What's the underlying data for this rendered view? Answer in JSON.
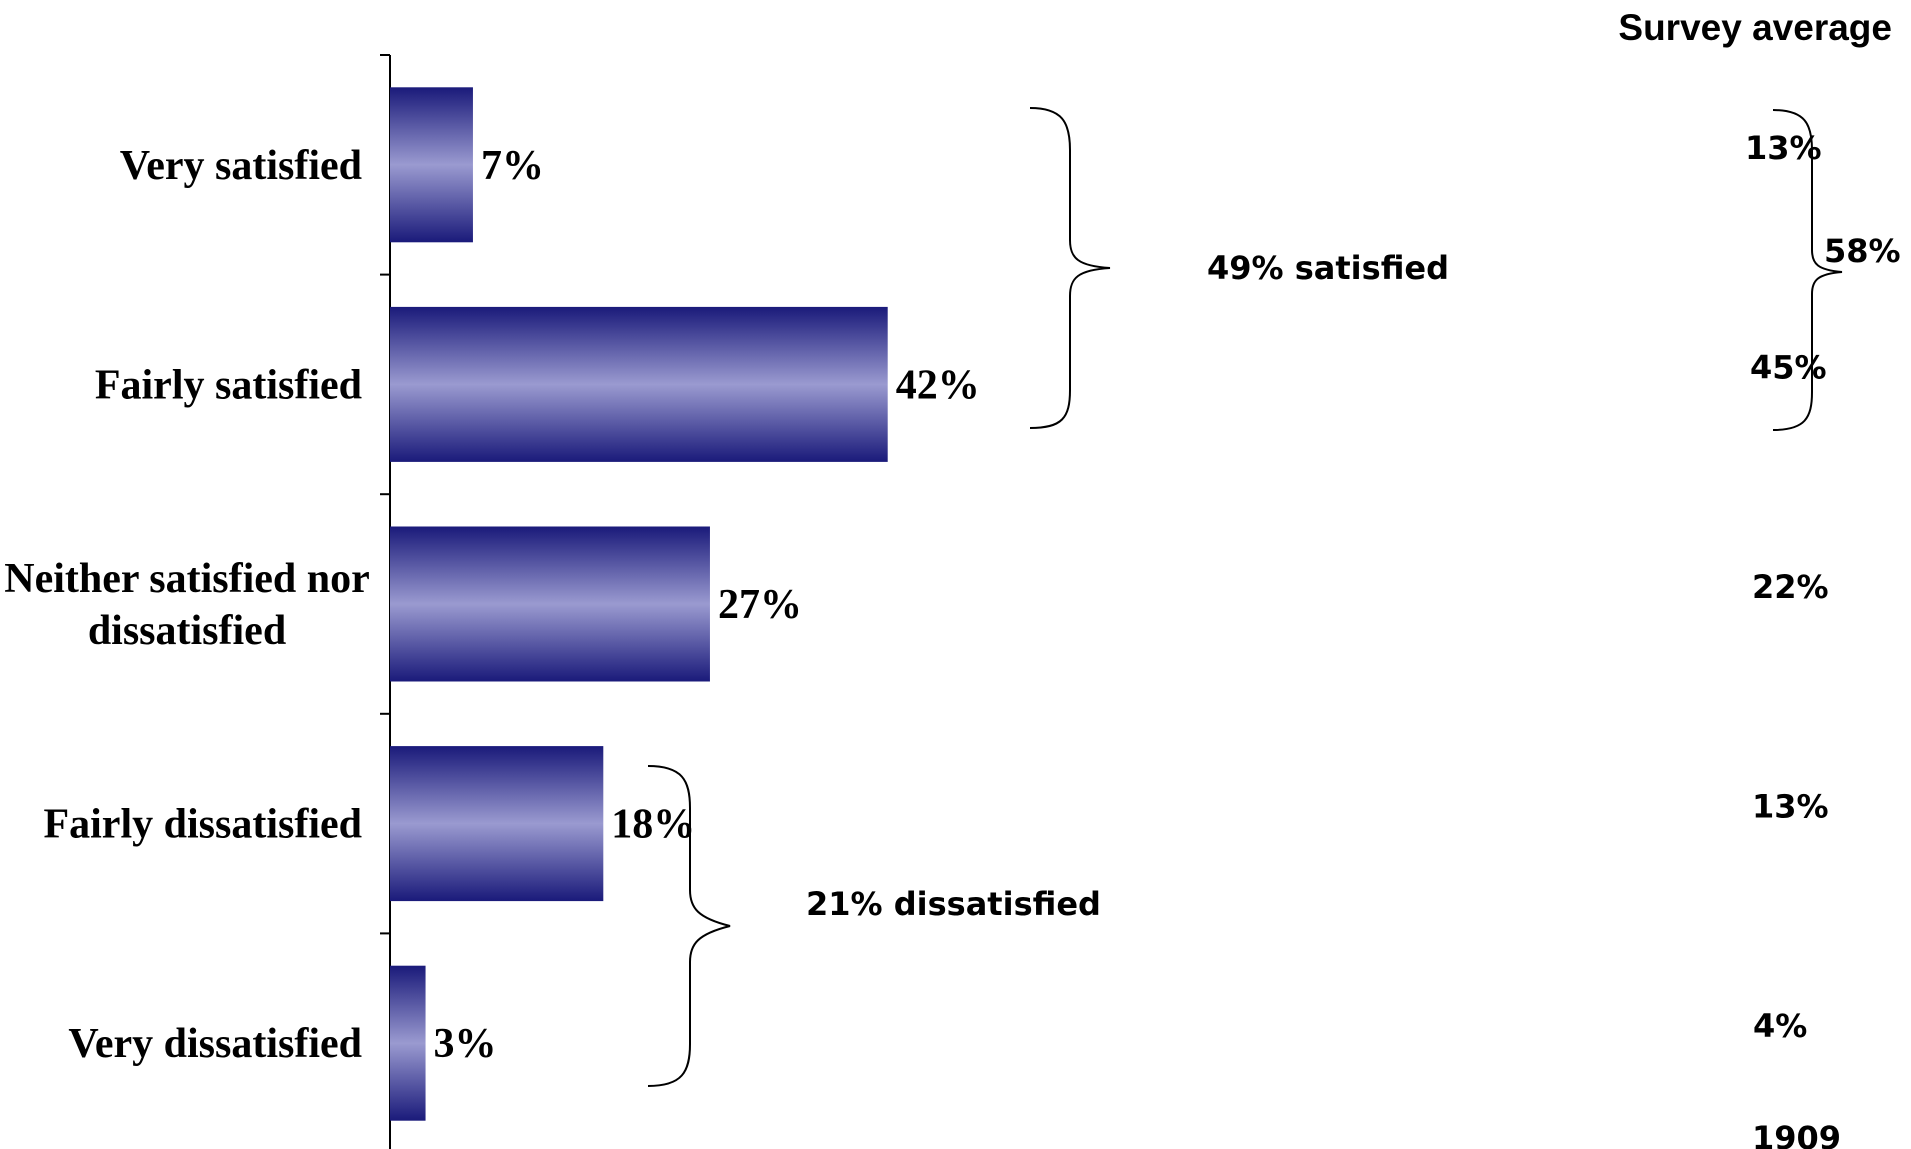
{
  "chart_data": {
    "type": "bar",
    "orientation": "horizontal",
    "categories": [
      "Very satisfied",
      "Fairly satisfied",
      "Neither satisfied nor dissatisfied",
      "Fairly dissatisfied",
      "Very dissatisfied"
    ],
    "values": [
      7,
      42,
      27,
      18,
      3
    ],
    "value_labels": [
      "7%",
      "42%",
      "27%",
      "18%",
      "3%"
    ],
    "xlim": [
      0,
      100
    ],
    "grid": false,
    "colors": {
      "bar_edge": "#1a1a7a",
      "bar_mid": "#9a9ad0"
    },
    "groups": [
      {
        "label": "49% satisfied",
        "categories": [
          "Very satisfied",
          "Fairly satisfied"
        ]
      },
      {
        "label": "21% dissatisfied",
        "categories": [
          "Fairly dissatisfied",
          "Very dissatisfied"
        ]
      }
    ],
    "survey_average": {
      "header": "Survey average",
      "values": [
        "13%",
        "45%",
        "22%",
        "13%",
        "4%"
      ],
      "group_total": "58%",
      "base": "1909"
    }
  }
}
